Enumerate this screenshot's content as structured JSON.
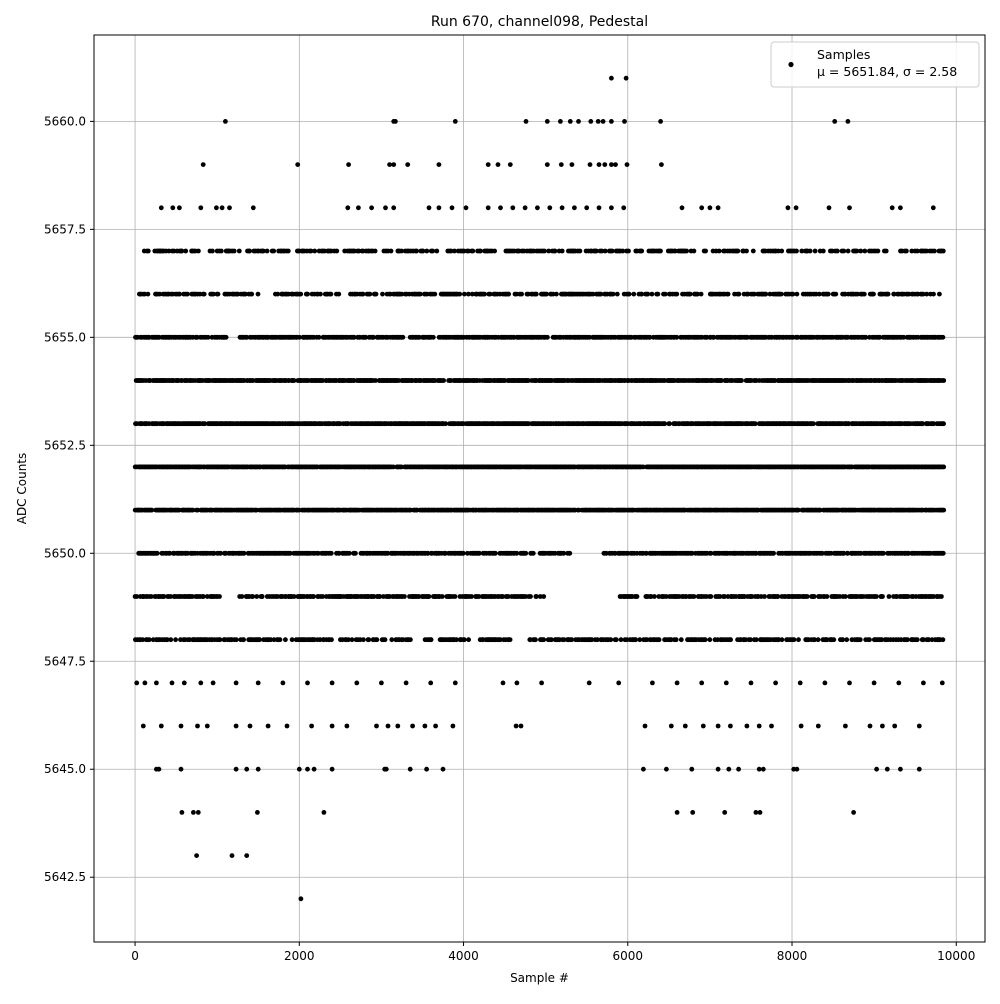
{
  "chart_data": {
    "type": "scatter",
    "title": "Run 670, channel098, Pedestal",
    "xlabel": "Sample #",
    "ylabel": "ADC Counts",
    "xlim": [
      -500,
      10350
    ],
    "ylim": [
      5641,
      5662
    ],
    "xticks": [
      0,
      2000,
      4000,
      6000,
      8000,
      10000
    ],
    "yticks": [
      5642.5,
      5645.0,
      5647.5,
      5650.0,
      5652.5,
      5655.0,
      5657.5,
      5660.0
    ],
    "xtick_labels": [
      "0",
      "2000",
      "4000",
      "6000",
      "8000",
      "10000"
    ],
    "ytick_labels": [
      "5642.5",
      "5645.0",
      "5647.5",
      "5650.0",
      "5652.5",
      "5655.0",
      "5657.5",
      "5660.0"
    ],
    "grid": true,
    "legend": {
      "placement": "top-right",
      "entry_name": "Samples",
      "entry_stats": "μ = 5651.84, σ = 2.58"
    },
    "marker_color": "#000000",
    "n_samples": 9850,
    "series": [
      {
        "name": "Samples",
        "dense_levels": [
          5648,
          5649,
          5650,
          5651,
          5652,
          5653,
          5654,
          5655,
          5656,
          5657
        ],
        "sparse_points": [
          [
            5800,
            5661
          ],
          [
            5980,
            5661
          ],
          [
            1100,
            5660
          ],
          [
            3150,
            5660
          ],
          [
            3170,
            5660
          ],
          [
            3900,
            5660
          ],
          [
            4760,
            5660
          ],
          [
            5020,
            5660
          ],
          [
            5180,
            5660
          ],
          [
            5300,
            5660
          ],
          [
            5400,
            5660
          ],
          [
            5550,
            5660
          ],
          [
            5640,
            5660
          ],
          [
            5700,
            5660
          ],
          [
            5800,
            5660
          ],
          [
            5960,
            5660
          ],
          [
            6400,
            5660
          ],
          [
            8520,
            5660
          ],
          [
            8680,
            5660
          ],
          [
            830,
            5659
          ],
          [
            1980,
            5659
          ],
          [
            2600,
            5659
          ],
          [
            3100,
            5659
          ],
          [
            3150,
            5659
          ],
          [
            3320,
            5659
          ],
          [
            3700,
            5659
          ],
          [
            4300,
            5659
          ],
          [
            4420,
            5659
          ],
          [
            4570,
            5659
          ],
          [
            5020,
            5659
          ],
          [
            5190,
            5659
          ],
          [
            5320,
            5659
          ],
          [
            5540,
            5659
          ],
          [
            5650,
            5659
          ],
          [
            5720,
            5659
          ],
          [
            5800,
            5659
          ],
          [
            5850,
            5659
          ],
          [
            5990,
            5659
          ],
          [
            6410,
            5659
          ],
          [
            320,
            5658
          ],
          [
            460,
            5658
          ],
          [
            540,
            5658
          ],
          [
            800,
            5658
          ],
          [
            990,
            5658
          ],
          [
            1060,
            5658
          ],
          [
            1150,
            5658
          ],
          [
            1440,
            5658
          ],
          [
            2590,
            5658
          ],
          [
            2720,
            5658
          ],
          [
            2880,
            5658
          ],
          [
            3050,
            5658
          ],
          [
            3150,
            5658
          ],
          [
            3580,
            5658
          ],
          [
            3700,
            5658
          ],
          [
            3860,
            5658
          ],
          [
            4030,
            5658
          ],
          [
            4300,
            5658
          ],
          [
            4450,
            5658
          ],
          [
            4600,
            5658
          ],
          [
            4750,
            5658
          ],
          [
            4900,
            5658
          ],
          [
            5050,
            5658
          ],
          [
            5200,
            5658
          ],
          [
            5350,
            5658
          ],
          [
            5500,
            5658
          ],
          [
            5650,
            5658
          ],
          [
            5800,
            5658
          ],
          [
            5950,
            5658
          ],
          [
            6660,
            5658
          ],
          [
            6900,
            5658
          ],
          [
            7000,
            5658
          ],
          [
            7100,
            5658
          ],
          [
            7950,
            5658
          ],
          [
            8050,
            5658
          ],
          [
            8450,
            5658
          ],
          [
            8700,
            5658
          ],
          [
            9220,
            5658
          ],
          [
            9320,
            5658
          ],
          [
            9720,
            5658
          ],
          [
            20,
            5647
          ],
          [
            120,
            5647
          ],
          [
            260,
            5647
          ],
          [
            450,
            5647
          ],
          [
            600,
            5647
          ],
          [
            800,
            5647
          ],
          [
            950,
            5647
          ],
          [
            1230,
            5647
          ],
          [
            1500,
            5647
          ],
          [
            1800,
            5647
          ],
          [
            2100,
            5647
          ],
          [
            2400,
            5647
          ],
          [
            2700,
            5647
          ],
          [
            3000,
            5647
          ],
          [
            3300,
            5647
          ],
          [
            3600,
            5647
          ],
          [
            3900,
            5647
          ],
          [
            4480,
            5647
          ],
          [
            4650,
            5647
          ],
          [
            4950,
            5647
          ],
          [
            5530,
            5647
          ],
          [
            5890,
            5647
          ],
          [
            6300,
            5647
          ],
          [
            6600,
            5647
          ],
          [
            6900,
            5647
          ],
          [
            7200,
            5647
          ],
          [
            7500,
            5647
          ],
          [
            7800,
            5647
          ],
          [
            8100,
            5647
          ],
          [
            8400,
            5647
          ],
          [
            8700,
            5647
          ],
          [
            9000,
            5647
          ],
          [
            9300,
            5647
          ],
          [
            9600,
            5647
          ],
          [
            9830,
            5647
          ],
          [
            100,
            5646
          ],
          [
            320,
            5646
          ],
          [
            560,
            5646
          ],
          [
            760,
            5646
          ],
          [
            880,
            5646
          ],
          [
            1230,
            5646
          ],
          [
            1400,
            5646
          ],
          [
            1620,
            5646
          ],
          [
            1850,
            5646
          ],
          [
            2150,
            5646
          ],
          [
            2400,
            5646
          ],
          [
            2580,
            5646
          ],
          [
            2940,
            5646
          ],
          [
            3080,
            5646
          ],
          [
            3200,
            5646
          ],
          [
            3380,
            5646
          ],
          [
            3530,
            5646
          ],
          [
            3660,
            5646
          ],
          [
            3870,
            5646
          ],
          [
            4640,
            5646
          ],
          [
            4700,
            5646
          ],
          [
            6210,
            5646
          ],
          [
            6530,
            5646
          ],
          [
            6700,
            5646
          ],
          [
            6920,
            5646
          ],
          [
            7100,
            5646
          ],
          [
            7250,
            5646
          ],
          [
            7450,
            5646
          ],
          [
            7600,
            5646
          ],
          [
            7750,
            5646
          ],
          [
            8110,
            5646
          ],
          [
            8320,
            5646
          ],
          [
            8650,
            5646
          ],
          [
            8950,
            5646
          ],
          [
            9100,
            5646
          ],
          [
            9250,
            5646
          ],
          [
            9550,
            5646
          ],
          [
            260,
            5645
          ],
          [
            290,
            5645
          ],
          [
            560,
            5645
          ],
          [
            1230,
            5645
          ],
          [
            1360,
            5645
          ],
          [
            1500,
            5645
          ],
          [
            2000,
            5645
          ],
          [
            2100,
            5645
          ],
          [
            2180,
            5645
          ],
          [
            2400,
            5645
          ],
          [
            3040,
            5645
          ],
          [
            3060,
            5645
          ],
          [
            3350,
            5645
          ],
          [
            3550,
            5645
          ],
          [
            3750,
            5645
          ],
          [
            6190,
            5645
          ],
          [
            6470,
            5645
          ],
          [
            6780,
            5645
          ],
          [
            7100,
            5645
          ],
          [
            7230,
            5645
          ],
          [
            7350,
            5645
          ],
          [
            7600,
            5645
          ],
          [
            7650,
            5645
          ],
          [
            8020,
            5645
          ],
          [
            8060,
            5645
          ],
          [
            9030,
            5645
          ],
          [
            9160,
            5645
          ],
          [
            9320,
            5645
          ],
          [
            9550,
            5645
          ],
          [
            570,
            5644
          ],
          [
            710,
            5644
          ],
          [
            770,
            5644
          ],
          [
            1490,
            5644
          ],
          [
            2300,
            5644
          ],
          [
            6600,
            5644
          ],
          [
            6790,
            5644
          ],
          [
            7180,
            5644
          ],
          [
            7560,
            5644
          ],
          [
            7610,
            5644
          ],
          [
            8750,
            5644
          ],
          [
            750,
            5643
          ],
          [
            1180,
            5643
          ],
          [
            1360,
            5643
          ],
          [
            2020,
            5642
          ]
        ],
        "gaps": [
          [
            5656,
            1500,
            1700
          ],
          [
            5656,
            2500,
            2620
          ],
          [
            5655,
            1150,
            1250
          ],
          [
            5649,
            1050,
            1230
          ],
          [
            5648,
            3400,
            3520
          ],
          [
            5648,
            4080,
            4200
          ],
          [
            5650,
            5300,
            5700
          ],
          [
            5649,
            5000,
            5900
          ],
          [
            5648,
            4600,
            4800
          ]
        ]
      }
    ]
  }
}
